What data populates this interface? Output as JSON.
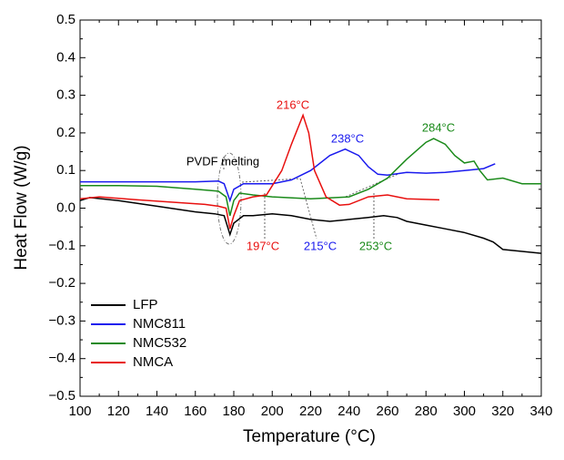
{
  "chart_data": {
    "type": "line",
    "xlabel": "Temperature (°C)",
    "ylabel": "Heat Flow (W/g)",
    "xlim": [
      100,
      340
    ],
    "xticks": [
      100,
      120,
      140,
      160,
      180,
      200,
      220,
      240,
      260,
      280,
      300,
      320,
      340
    ],
    "ylim": [
      -0.5,
      0.5
    ],
    "yticks": [
      {
        "value": -0.5,
        "label": "−0.5"
      },
      {
        "value": -0.4,
        "label": "−0.4"
      },
      {
        "value": -0.3,
        "label": "−0.3"
      },
      {
        "value": -0.2,
        "label": "−0.2"
      },
      {
        "value": -0.1,
        "label": "−0.1"
      },
      {
        "value": 0,
        "label": "0.0"
      },
      0.1,
      0.2,
      0.3,
      0.4,
      0.5
    ],
    "legend": "lower left",
    "series": [
      {
        "name": "LFP",
        "color": "#000000",
        "x": [
          100,
          105,
          120,
          140,
          160,
          170,
          175,
          178,
          180,
          185,
          190,
          200,
          210,
          220,
          230,
          240,
          250,
          258,
          265,
          270,
          280,
          290,
          300,
          310,
          315,
          320,
          330,
          340
        ],
        "values": [
          0.02,
          0.028,
          0.02,
          0.005,
          -0.01,
          -0.015,
          -0.02,
          -0.07,
          -0.04,
          -0.02,
          -0.02,
          -0.015,
          -0.02,
          -0.03,
          -0.035,
          -0.03,
          -0.025,
          -0.02,
          -0.025,
          -0.035,
          -0.045,
          -0.055,
          -0.065,
          -0.08,
          -0.09,
          -0.11,
          -0.115,
          -0.12
        ]
      },
      {
        "name": "NMC811",
        "color": "#1a1aee",
        "x": [
          100,
          120,
          140,
          160,
          172,
          175,
          178,
          180,
          185,
          200,
          210,
          220,
          230,
          238,
          245,
          250,
          255,
          260,
          270,
          280,
          290,
          300,
          310,
          316
        ],
        "values": [
          0.07,
          0.07,
          0.07,
          0.07,
          0.072,
          0.065,
          0.02,
          0.05,
          0.065,
          0.065,
          0.075,
          0.1,
          0.14,
          0.157,
          0.14,
          0.11,
          0.09,
          0.088,
          0.095,
          0.093,
          0.095,
          0.1,
          0.105,
          0.118
        ]
      },
      {
        "name": "NMC532",
        "color": "#1a8a1a",
        "x": [
          100,
          120,
          140,
          160,
          172,
          176,
          178,
          180,
          183,
          190,
          200,
          220,
          240,
          250,
          260,
          270,
          280,
          284,
          290,
          295,
          300,
          305,
          308,
          312,
          320,
          330,
          340
        ],
        "values": [
          0.06,
          0.06,
          0.058,
          0.05,
          0.045,
          0.03,
          -0.02,
          0.02,
          0.04,
          0.035,
          0.03,
          0.025,
          0.03,
          0.05,
          0.08,
          0.13,
          0.175,
          0.185,
          0.17,
          0.14,
          0.12,
          0.125,
          0.1,
          0.075,
          0.08,
          0.065,
          0.065
        ]
      },
      {
        "name": "NMCA",
        "color": "#e8100f",
        "x": [
          100,
          110,
          130,
          150,
          165,
          172,
          176,
          178,
          180,
          183,
          190,
          197,
          205,
          210,
          216,
          219,
          222,
          228,
          235,
          240,
          250,
          260,
          270,
          287
        ],
        "values": [
          0.025,
          0.03,
          0.022,
          0.015,
          0.01,
          0.005,
          0,
          -0.055,
          -0.02,
          0.02,
          0.03,
          0.035,
          0.1,
          0.17,
          0.247,
          0.2,
          0.1,
          0.03,
          0.008,
          0.01,
          0.03,
          0.035,
          0.025,
          0.022
        ]
      }
    ],
    "annotations": [
      "216°C",
      "238°C",
      "284°C",
      "197°C",
      "215°C",
      "253°C",
      "PVDF melting"
    ]
  }
}
